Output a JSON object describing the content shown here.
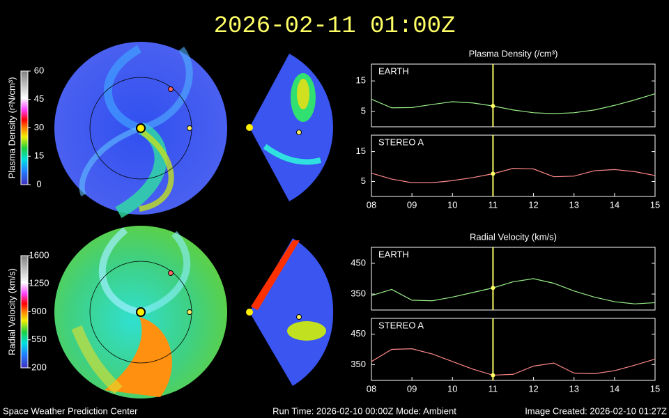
{
  "header": {
    "title": "2026-02-11 01:00Z"
  },
  "footer": {
    "left": "Space Weather Prediction Center",
    "center": "Run Time: 2026-02-10 00:00Z  Mode: Ambient",
    "right": "Image Created: 2026-02-10 01:27Z"
  },
  "colorbars": [
    {
      "label": "Plasma Density (r²N/cm³)",
      "lim": [
        0,
        60
      ],
      "ticks": [
        0,
        15,
        30,
        45,
        60
      ]
    },
    {
      "label": "Radial Velocity (km/s)",
      "lim": [
        200,
        1600
      ],
      "ticks": [
        200,
        550,
        900,
        1250,
        1600
      ]
    }
  ],
  "chart_data": [
    {
      "type": "line",
      "title": "Plasma Density (/cm³)",
      "xlim": [
        8,
        15
      ],
      "ylim": [
        0,
        20.5
      ],
      "yticks": [
        5,
        15
      ],
      "marker_x": 11,
      "x": [
        8,
        8.5,
        9,
        9.5,
        10,
        10.5,
        11,
        11.5,
        12,
        12.5,
        13,
        13.5,
        14,
        14.5,
        15
      ],
      "series": [
        {
          "name": "EARTH",
          "color": "#99ee88",
          "values": [
            9,
            6.2,
            6.3,
            7.3,
            8.2,
            7.8,
            6.8,
            5.5,
            4.6,
            4.3,
            4.6,
            5.5,
            7,
            8.8,
            10.8
          ]
        }
      ]
    },
    {
      "type": "line",
      "xlim": [
        8,
        15
      ],
      "ylim": [
        0,
        20.5
      ],
      "yticks": [
        5,
        15
      ],
      "marker_x": 11,
      "xticks": [
        {
          "value": 8,
          "label": "08"
        },
        {
          "value": 9,
          "label": "09"
        },
        10,
        11,
        12,
        13,
        14,
        15
      ],
      "x": [
        8,
        8.5,
        9,
        9.5,
        10,
        10.5,
        11,
        11.5,
        12,
        12.5,
        13,
        13.5,
        14,
        14.5,
        15
      ],
      "series": [
        {
          "name": "STEREO A",
          "color": "#ff8888",
          "values": [
            7.8,
            5.8,
            4.6,
            4.6,
            5.3,
            6.3,
            7.6,
            9.4,
            9.2,
            6.6,
            6.8,
            8.6,
            9,
            8.3,
            7
          ]
        }
      ]
    },
    {
      "type": "line",
      "title": "Radial Velocity (km/s)",
      "xlim": [
        8,
        15
      ],
      "ylim": [
        298,
        502
      ],
      "yticks": [
        350,
        450
      ],
      "marker_x": 11,
      "x": [
        8,
        8.5,
        9,
        9.5,
        10,
        10.5,
        11,
        11.5,
        12,
        12.5,
        13,
        13.5,
        14,
        14.5,
        15
      ],
      "series": [
        {
          "name": "EARTH",
          "color": "#99ee88",
          "values": [
            345,
            365,
            330,
            328,
            340,
            355,
            370,
            390,
            400,
            385,
            360,
            340,
            325,
            318,
            322
          ]
        }
      ]
    },
    {
      "type": "line",
      "xlim": [
        8,
        15
      ],
      "ylim": [
        298,
        502
      ],
      "yticks": [
        350,
        450
      ],
      "marker_x": 11,
      "xticks": [
        {
          "value": 8,
          "label": "08"
        },
        {
          "value": 9,
          "label": "09"
        },
        10,
        11,
        12,
        13,
        14,
        15
      ],
      "x": [
        8,
        8.5,
        9,
        9.5,
        10,
        10.5,
        11,
        11.5,
        12,
        12.5,
        13,
        13.5,
        14,
        14.5,
        15
      ],
      "series": [
        {
          "name": "STEREO A",
          "color": "#ff8888",
          "values": [
            360,
            400,
            402,
            385,
            360,
            335,
            315,
            318,
            345,
            355,
            322,
            320,
            330,
            348,
            368
          ]
        }
      ]
    }
  ]
}
